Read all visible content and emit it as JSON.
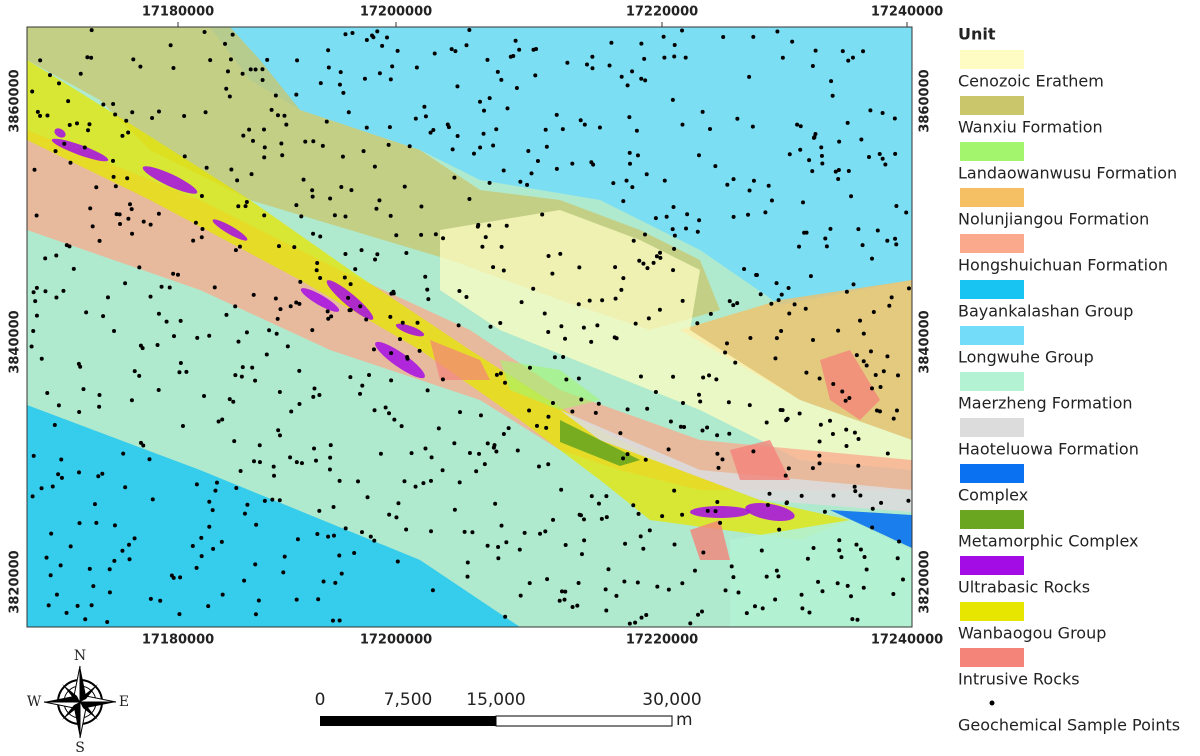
{
  "map": {
    "x_ticks": [
      17180000,
      17200000,
      17220000,
      17240000
    ],
    "y_ticks": [
      3860000,
      3840000,
      3820000
    ],
    "legend": {
      "title": "Unit",
      "items": [
        {
          "label": "Cenozoic Erathem",
          "color": "#fefcc2"
        },
        {
          "label": "Wanxiu Formation",
          "color": "#c9c66c"
        },
        {
          "label": "Landaowanwusu Formation",
          "color": "#a3f56e"
        },
        {
          "label": "Nolunjiangou Formation",
          "color": "#f5bf64"
        },
        {
          "label": "Hongshuichuan Formation",
          "color": "#fba98c"
        },
        {
          "label": "Bayankalashan Group",
          "color": "#18c4f2"
        },
        {
          "label": "Longwuhe Group",
          "color": "#73dcf9"
        },
        {
          "label": "Maerzheng Formation",
          "color": "#b3f2d3"
        },
        {
          "label": "Haoteluowa Formation",
          "color": "#dcdcdc"
        },
        {
          "label": "Complex",
          "color": "#0a72f0"
        },
        {
          "label": "Metamorphic Complex",
          "color": "#6aa620"
        },
        {
          "label": "Ultrabasic Rocks",
          "color": "#a40ce6"
        },
        {
          "label": "Wanbaogou Group",
          "color": "#e6e600"
        },
        {
          "label": "Intrusive Rocks",
          "color": "#f4837a"
        },
        {
          "label": "Geochemical Sample Points",
          "color": "#000000",
          "symbol": "point"
        }
      ]
    },
    "scale_bar": {
      "labels": [
        "0",
        "7,500",
        "15,000",
        "30,000"
      ],
      "unit": "m"
    },
    "compass": {
      "n": "N",
      "s": "S",
      "w": "W",
      "e": "E"
    }
  }
}
